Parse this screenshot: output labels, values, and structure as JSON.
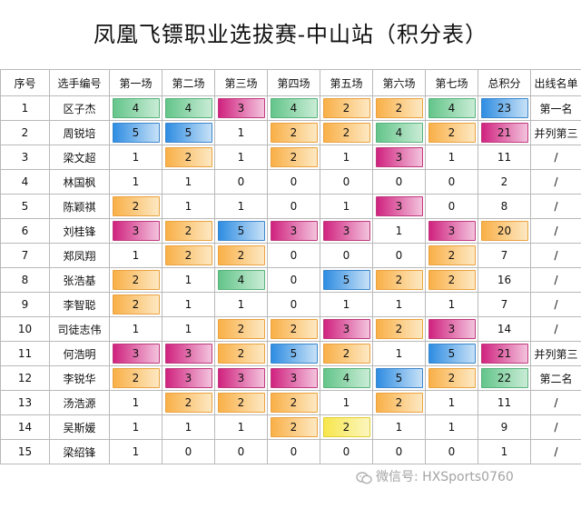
{
  "title": "凤凰飞镖职业选拔赛-中山站（积分表）",
  "headers": [
    "序号",
    "选手编号",
    "第一场",
    "第二场",
    "第三场",
    "第四场",
    "第五场",
    "第六场",
    "第七场",
    "总积分",
    "出线名单"
  ],
  "colors": {
    "green": "#64c58a",
    "blue": "#2f8de2",
    "pink": "#d0237f",
    "orange": "#f9b048",
    "yellow": "#f7e64d"
  },
  "rows": [
    {
      "no": "1",
      "name": "区子杰",
      "scores": [
        {
          "v": "4",
          "c": "green"
        },
        {
          "v": "4",
          "c": "green"
        },
        {
          "v": "3",
          "c": "pink"
        },
        {
          "v": "4",
          "c": "green"
        },
        {
          "v": "2",
          "c": "orange"
        },
        {
          "v": "2",
          "c": "orange"
        },
        {
          "v": "4",
          "c": "green"
        }
      ],
      "total": {
        "v": "23",
        "c": "blue"
      },
      "result": "第一名"
    },
    {
      "no": "2",
      "name": "周锐培",
      "scores": [
        {
          "v": "5",
          "c": "blue"
        },
        {
          "v": "5",
          "c": "blue"
        },
        {
          "v": "1",
          "c": "none"
        },
        {
          "v": "2",
          "c": "orange"
        },
        {
          "v": "2",
          "c": "orange"
        },
        {
          "v": "4",
          "c": "green"
        },
        {
          "v": "2",
          "c": "orange"
        }
      ],
      "total": {
        "v": "21",
        "c": "pink"
      },
      "result": "并列第三"
    },
    {
      "no": "3",
      "name": "梁文超",
      "scores": [
        {
          "v": "1",
          "c": "none"
        },
        {
          "v": "2",
          "c": "orange"
        },
        {
          "v": "1",
          "c": "none"
        },
        {
          "v": "2",
          "c": "orange"
        },
        {
          "v": "1",
          "c": "none"
        },
        {
          "v": "3",
          "c": "pink"
        },
        {
          "v": "1",
          "c": "none"
        }
      ],
      "total": {
        "v": "11",
        "c": "none"
      },
      "result": "/"
    },
    {
      "no": "4",
      "name": "林国枫",
      "scores": [
        {
          "v": "1",
          "c": "none"
        },
        {
          "v": "1",
          "c": "none"
        },
        {
          "v": "0",
          "c": "none"
        },
        {
          "v": "0",
          "c": "none"
        },
        {
          "v": "0",
          "c": "none"
        },
        {
          "v": "0",
          "c": "none"
        },
        {
          "v": "0",
          "c": "none"
        }
      ],
      "total": {
        "v": "2",
        "c": "none"
      },
      "result": "/"
    },
    {
      "no": "5",
      "name": "陈颖祺",
      "scores": [
        {
          "v": "2",
          "c": "orange"
        },
        {
          "v": "1",
          "c": "none"
        },
        {
          "v": "1",
          "c": "none"
        },
        {
          "v": "0",
          "c": "none"
        },
        {
          "v": "1",
          "c": "none"
        },
        {
          "v": "3",
          "c": "pink"
        },
        {
          "v": "0",
          "c": "none"
        }
      ],
      "total": {
        "v": "8",
        "c": "none"
      },
      "result": "/"
    },
    {
      "no": "6",
      "name": "刘桂锋",
      "scores": [
        {
          "v": "3",
          "c": "pink"
        },
        {
          "v": "2",
          "c": "orange"
        },
        {
          "v": "5",
          "c": "blue"
        },
        {
          "v": "3",
          "c": "pink"
        },
        {
          "v": "3",
          "c": "pink"
        },
        {
          "v": "1",
          "c": "none"
        },
        {
          "v": "3",
          "c": "pink"
        }
      ],
      "total": {
        "v": "20",
        "c": "orange"
      },
      "result": "/"
    },
    {
      "no": "7",
      "name": "郑凤翔",
      "scores": [
        {
          "v": "1",
          "c": "none"
        },
        {
          "v": "2",
          "c": "orange"
        },
        {
          "v": "2",
          "c": "orange"
        },
        {
          "v": "0",
          "c": "none"
        },
        {
          "v": "0",
          "c": "none"
        },
        {
          "v": "0",
          "c": "none"
        },
        {
          "v": "2",
          "c": "orange"
        }
      ],
      "total": {
        "v": "7",
        "c": "none"
      },
      "result": "/"
    },
    {
      "no": "8",
      "name": "张浩基",
      "scores": [
        {
          "v": "2",
          "c": "orange"
        },
        {
          "v": "1",
          "c": "none"
        },
        {
          "v": "4",
          "c": "green"
        },
        {
          "v": "0",
          "c": "none"
        },
        {
          "v": "5",
          "c": "blue"
        },
        {
          "v": "2",
          "c": "orange"
        },
        {
          "v": "2",
          "c": "orange"
        }
      ],
      "total": {
        "v": "16",
        "c": "none"
      },
      "result": "/"
    },
    {
      "no": "9",
      "name": "李智聪",
      "scores": [
        {
          "v": "2",
          "c": "orange"
        },
        {
          "v": "1",
          "c": "none"
        },
        {
          "v": "1",
          "c": "none"
        },
        {
          "v": "0",
          "c": "none"
        },
        {
          "v": "1",
          "c": "none"
        },
        {
          "v": "1",
          "c": "none"
        },
        {
          "v": "1",
          "c": "none"
        }
      ],
      "total": {
        "v": "7",
        "c": "none"
      },
      "result": "/"
    },
    {
      "no": "10",
      "name": "司徒志伟",
      "scores": [
        {
          "v": "1",
          "c": "none"
        },
        {
          "v": "1",
          "c": "none"
        },
        {
          "v": "2",
          "c": "orange"
        },
        {
          "v": "2",
          "c": "orange"
        },
        {
          "v": "3",
          "c": "pink"
        },
        {
          "v": "2",
          "c": "orange"
        },
        {
          "v": "3",
          "c": "pink"
        }
      ],
      "total": {
        "v": "14",
        "c": "none"
      },
      "result": "/"
    },
    {
      "no": "11",
      "name": "何浩明",
      "scores": [
        {
          "v": "3",
          "c": "pink"
        },
        {
          "v": "3",
          "c": "pink"
        },
        {
          "v": "2",
          "c": "orange"
        },
        {
          "v": "5",
          "c": "blue"
        },
        {
          "v": "2",
          "c": "orange"
        },
        {
          "v": "1",
          "c": "none"
        },
        {
          "v": "5",
          "c": "blue"
        }
      ],
      "total": {
        "v": "21",
        "c": "pink"
      },
      "result": "并列第三"
    },
    {
      "no": "12",
      "name": "李锐华",
      "scores": [
        {
          "v": "2",
          "c": "orange"
        },
        {
          "v": "3",
          "c": "pink"
        },
        {
          "v": "3",
          "c": "pink"
        },
        {
          "v": "3",
          "c": "pink"
        },
        {
          "v": "4",
          "c": "green"
        },
        {
          "v": "5",
          "c": "blue"
        },
        {
          "v": "2",
          "c": "orange"
        }
      ],
      "total": {
        "v": "22",
        "c": "green"
      },
      "result": "第二名"
    },
    {
      "no": "13",
      "name": "汤浩源",
      "scores": [
        {
          "v": "1",
          "c": "none"
        },
        {
          "v": "2",
          "c": "orange"
        },
        {
          "v": "2",
          "c": "orange"
        },
        {
          "v": "2",
          "c": "orange"
        },
        {
          "v": "1",
          "c": "none"
        },
        {
          "v": "2",
          "c": "orange"
        },
        {
          "v": "1",
          "c": "none"
        }
      ],
      "total": {
        "v": "11",
        "c": "none"
      },
      "result": "/"
    },
    {
      "no": "14",
      "name": "吴斯媛",
      "scores": [
        {
          "v": "1",
          "c": "none"
        },
        {
          "v": "1",
          "c": "none"
        },
        {
          "v": "1",
          "c": "none"
        },
        {
          "v": "2",
          "c": "orange"
        },
        {
          "v": "2",
          "c": "yellow"
        },
        {
          "v": "1",
          "c": "none"
        },
        {
          "v": "1",
          "c": "none"
        }
      ],
      "total": {
        "v": "9",
        "c": "none"
      },
      "result": "/"
    },
    {
      "no": "15",
      "name": "梁绍锋",
      "scores": [
        {
          "v": "1",
          "c": "none"
        },
        {
          "v": "0",
          "c": "none"
        },
        {
          "v": "0",
          "c": "none"
        },
        {
          "v": "0",
          "c": "none"
        },
        {
          "v": "0",
          "c": "none"
        },
        {
          "v": "0",
          "c": "none"
        },
        {
          "v": "0",
          "c": "none"
        }
      ],
      "total": {
        "v": "1",
        "c": "none"
      },
      "result": "/"
    }
  ],
  "watermark": "微信号: HXSports0760",
  "watermark_icon": "wechat-icon"
}
